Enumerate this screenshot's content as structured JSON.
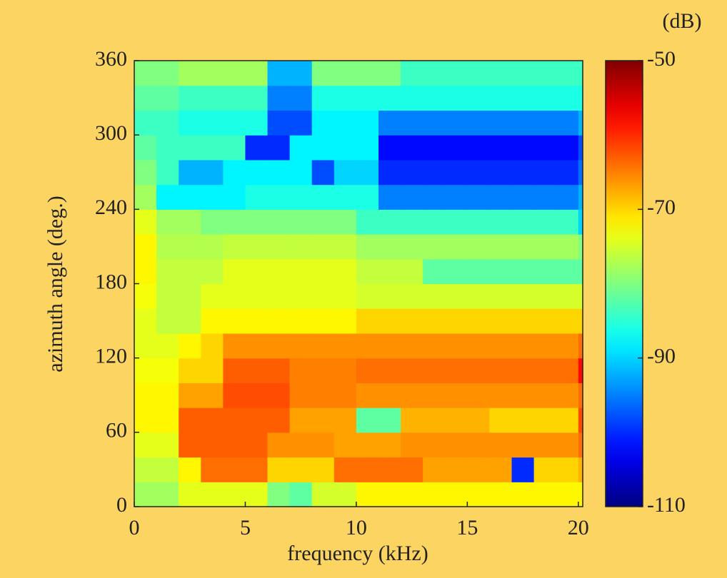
{
  "chart_data": {
    "type": "heatmap",
    "colormap": "jet",
    "xlabel": "frequency (kHz)",
    "ylabel": "azimuth angle (deg.)",
    "colorbar_label": "(dB)",
    "xlim": [
      0,
      20.2
    ],
    "xticks": [
      0,
      5,
      10,
      15,
      20
    ],
    "ylim": [
      0,
      360
    ],
    "yticks": [
      0,
      60,
      120,
      180,
      240,
      300,
      360
    ],
    "clim": [
      -110,
      -50
    ],
    "cticks": [
      -50,
      -70,
      -90,
      -110
    ],
    "xbins": [
      0,
      1,
      2,
      3,
      4,
      5,
      6,
      7,
      8,
      9,
      10,
      11,
      12,
      13,
      14,
      15,
      16,
      17,
      18,
      19,
      20,
      20.2
    ],
    "ybins": [
      0,
      20,
      40,
      60,
      80,
      100,
      120,
      140,
      160,
      180,
      200,
      220,
      240,
      260,
      280,
      300,
      320,
      340,
      360
    ],
    "values": [
      [
        -78,
        -78,
        -74,
        -74,
        -74,
        -74,
        -80,
        -82,
        -75,
        -75,
        -72,
        -72,
        -72,
        -72,
        -72,
        -72,
        -72,
        -72,
        -72,
        -72,
        -72
      ],
      [
        -76,
        -76,
        -72,
        -64,
        -64,
        -64,
        -70,
        -70,
        -70,
        -64,
        -64,
        -64,
        -64,
        -67,
        -67,
        -67,
        -67,
        -100,
        -70,
        -70,
        -68
      ],
      [
        -74,
        -74,
        -63,
        -63,
        -63,
        -63,
        -66,
        -66,
        -66,
        -67,
        -67,
        -67,
        -66,
        -66,
        -66,
        -66,
        -66,
        -66,
        -66,
        -66,
        -64
      ],
      [
        -72,
        -72,
        -63,
        -63,
        -63,
        -63,
        -63,
        -67,
        -67,
        -67,
        -82,
        -82,
        -68,
        -68,
        -68,
        -68,
        -70,
        -70,
        -70,
        -70,
        -62
      ],
      [
        -72,
        -72,
        -67,
        -67,
        -62,
        -62,
        -62,
        -65,
        -65,
        -65,
        -66,
        -66,
        -66,
        -66,
        -66,
        -66,
        -66,
        -66,
        -66,
        -66,
        -64
      ],
      [
        -73,
        -73,
        -70,
        -70,
        -63,
        -63,
        -63,
        -65,
        -65,
        -65,
        -64,
        -64,
        -64,
        -64,
        -64,
        -64,
        -64,
        -64,
        -64,
        -64,
        -58
      ],
      [
        -74,
        -74,
        -72,
        -70,
        -66,
        -66,
        -66,
        -66,
        -66,
        -66,
        -66,
        -66,
        -66,
        -66,
        -66,
        -66,
        -66,
        -66,
        -66,
        -66,
        -64
      ],
      [
        -74,
        -76,
        -76,
        -72,
        -72,
        -72,
        -72,
        -72,
        -72,
        -72,
        -70,
        -70,
        -70,
        -70,
        -70,
        -70,
        -70,
        -70,
        -70,
        -70,
        -70
      ],
      [
        -73,
        -76,
        -76,
        -74,
        -74,
        -74,
        -74,
        -74,
        -74,
        -74,
        -75,
        -75,
        -75,
        -75,
        -75,
        -75,
        -75,
        -75,
        -75,
        -75,
        -75
      ],
      [
        -72,
        -76,
        -76,
        -76,
        -74,
        -74,
        -74,
        -74,
        -74,
        -74,
        -76,
        -76,
        -76,
        -82,
        -82,
        -82,
        -82,
        -82,
        -82,
        -82,
        -82
      ],
      [
        -72,
        -77,
        -77,
        -77,
        -76,
        -76,
        -76,
        -76,
        -76,
        -76,
        -78,
        -78,
        -78,
        -78,
        -78,
        -78,
        -78,
        -78,
        -78,
        -78,
        -80
      ],
      [
        -74,
        -78,
        -78,
        -80,
        -80,
        -80,
        -80,
        -80,
        -80,
        -80,
        -84,
        -84,
        -84,
        -84,
        -84,
        -84,
        -84,
        -84,
        -84,
        -84,
        -90
      ],
      [
        -78,
        -88,
        -88,
        -88,
        -88,
        -86,
        -86,
        -86,
        -86,
        -86,
        -86,
        -95,
        -95,
        -95,
        -95,
        -95,
        -95,
        -95,
        -95,
        -95,
        -92
      ],
      [
        -80,
        -84,
        -92,
        -92,
        -88,
        -88,
        -88,
        -88,
        -98,
        -90,
        -90,
        -100,
        -100,
        -100,
        -100,
        -100,
        -100,
        -100,
        -100,
        -100,
        -96
      ],
      [
        -82,
        -84,
        -84,
        -84,
        -84,
        -100,
        -100,
        -88,
        -88,
        -88,
        -88,
        -102,
        -102,
        -102,
        -102,
        -102,
        -102,
        -102,
        -102,
        -102,
        -98
      ],
      [
        -84,
        -84,
        -86,
        -86,
        -86,
        -86,
        -98,
        -98,
        -88,
        -88,
        -88,
        -95,
        -95,
        -95,
        -95,
        -95,
        -95,
        -95,
        -95,
        -95,
        -92
      ],
      [
        -82,
        -82,
        -84,
        -84,
        -84,
        -84,
        -95,
        -95,
        -86,
        -86,
        -86,
        -86,
        -86,
        -86,
        -86,
        -86,
        -86,
        -86,
        -86,
        -86,
        -86
      ],
      [
        -80,
        -80,
        -78,
        -78,
        -78,
        -78,
        -92,
        -92,
        -80,
        -80,
        -80,
        -80,
        -84,
        -84,
        -84,
        -84,
        -84,
        -84,
        -84,
        -84,
        -84
      ]
    ]
  }
}
